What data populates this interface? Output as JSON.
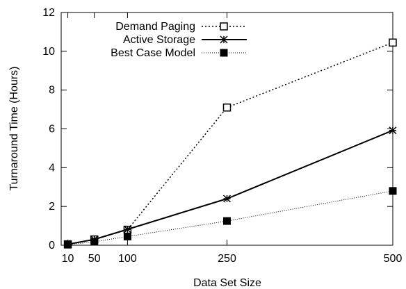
{
  "chart_data": {
    "type": "line",
    "title": "",
    "xlabel": "Data Set Size",
    "ylabel": "Turnaround Time (Hours)",
    "x": [
      10,
      50,
      100,
      250,
      500
    ],
    "xticks": [
      "10",
      "50",
      "100",
      "250",
      "500"
    ],
    "yticks": [
      "0",
      "2",
      "4",
      "6",
      "8",
      "10",
      "12"
    ],
    "xlim": [
      0,
      500
    ],
    "ylim": [
      0,
      12
    ],
    "grid": false,
    "legend_position": "top-left",
    "series": [
      {
        "name": "Demand Paging",
        "values": [
          0.05,
          0.3,
          0.8,
          7.1,
          10.45
        ],
        "line": "dotted",
        "marker": "open-square",
        "color": "#000000"
      },
      {
        "name": "Active Storage",
        "values": [
          0.05,
          0.3,
          0.82,
          2.4,
          5.92
        ],
        "line": "solid",
        "marker": "asterisk",
        "color": "#000000"
      },
      {
        "name": "Best Case Model",
        "values": [
          0.03,
          0.18,
          0.45,
          1.25,
          2.8
        ],
        "line": "fine-dotted",
        "marker": "filled-square",
        "color": "#000000"
      }
    ]
  }
}
